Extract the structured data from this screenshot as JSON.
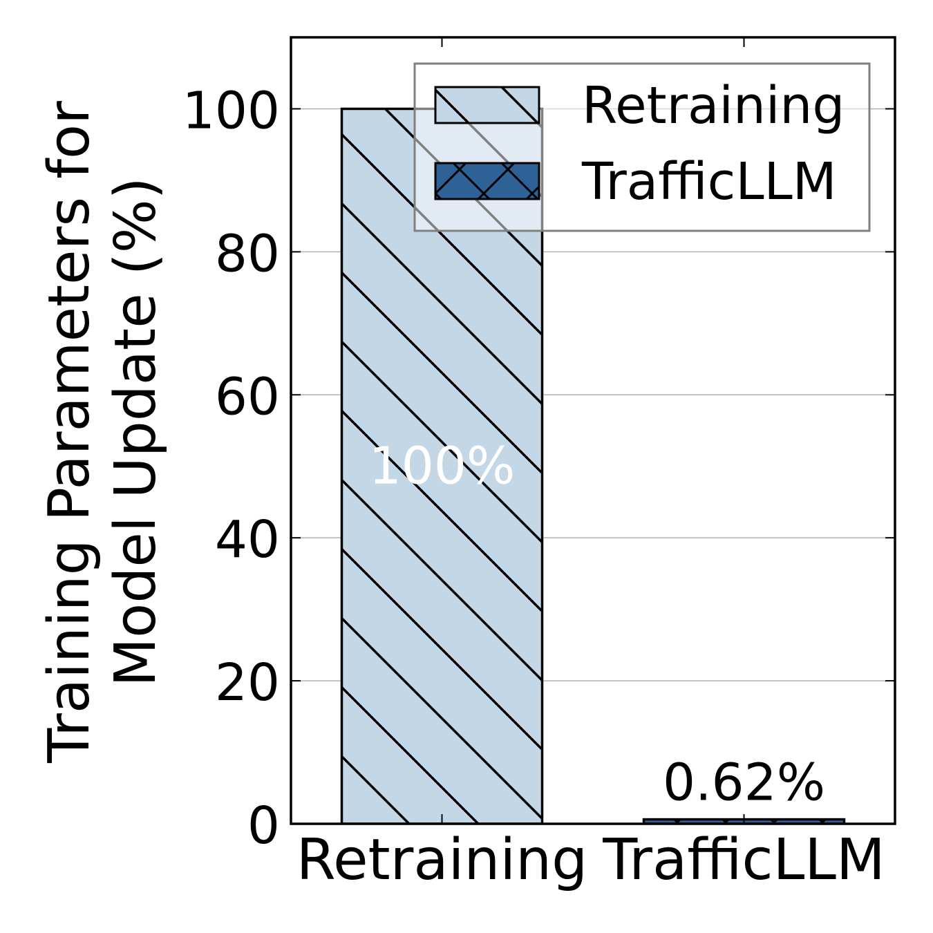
{
  "chart_data": {
    "type": "bar",
    "categories": [
      "Retraining",
      "TrafficLLM"
    ],
    "values": [
      100,
      0.62
    ],
    "value_labels": [
      "100%",
      "0.62%"
    ],
    "title": "",
    "xlabel": "",
    "ylabel_line1": "Training Parameters for",
    "ylabel_line2": "Model Update (%)",
    "ylim": [
      0,
      110
    ],
    "yticks": [
      0,
      20,
      40,
      60,
      80,
      100
    ],
    "grid": true,
    "legend_position": "top-right",
    "legend": [
      {
        "name": "Retraining",
        "color": "#c4d7e7",
        "hatch": "diagonal"
      },
      {
        "name": "TrafficLLM",
        "color": "#2e6296",
        "hatch": "cross"
      }
    ],
    "bar_colors": [
      "#c4d7e7",
      "#2e6296"
    ]
  }
}
